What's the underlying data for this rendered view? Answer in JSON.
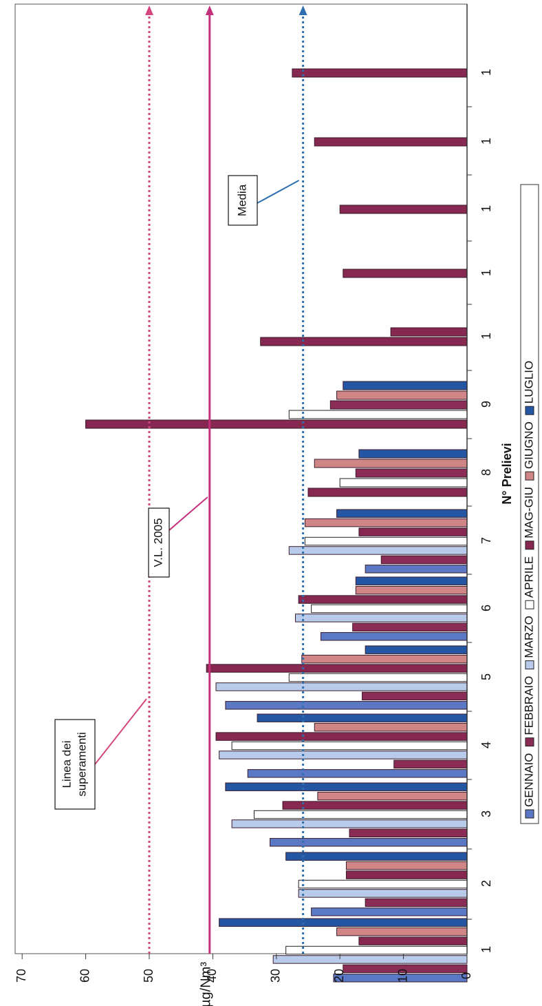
{
  "chart_data": {
    "type": "bar",
    "orientation": "horizontal",
    "xlabel": "N° Prelievi",
    "ylabel": "µg/Nm³",
    "ylim": [
      0,
      70
    ],
    "yticks": [
      "0",
      "10",
      "20",
      "30",
      "40",
      "50",
      "60",
      "70"
    ],
    "grid": false,
    "legend_position": "bottom",
    "groups": [
      {
        "label": "1",
        "bars": [
          [
            "GENNAIO",
            21
          ],
          [
            "FEBBRAIO",
            19.5
          ],
          [
            "MARZO",
            30.5
          ],
          [
            "APRILE",
            28.5
          ],
          [
            "MAG-GIU",
            17
          ],
          [
            "GIUGNO",
            20.5
          ],
          [
            "LUGLIO",
            39
          ]
        ]
      },
      {
        "label": "2",
        "bars": [
          [
            "GENNAIO",
            24.5
          ],
          [
            "FEBBRAIO",
            16
          ],
          [
            "MARZO",
            26.5
          ],
          [
            "APRILE",
            26.5
          ],
          [
            "MAG-GIU",
            19
          ],
          [
            "GIUGNO",
            19
          ],
          [
            "LUGLIO",
            28.5
          ]
        ]
      },
      {
        "label": "3",
        "bars": [
          [
            "GENNAIO",
            31
          ],
          [
            "FEBBRAIO",
            18.5
          ],
          [
            "MARZO",
            37
          ],
          [
            "APRILE",
            33.5
          ],
          [
            "MAG-GIU",
            29
          ],
          [
            "GIUGNO",
            23.5
          ],
          [
            "LUGLIO",
            38
          ]
        ]
      },
      {
        "label": "4",
        "bars": [
          [
            "GENNAIO",
            34.5
          ],
          [
            "FEBBRAIO",
            11.5
          ],
          [
            "MARZO",
            39
          ],
          [
            "APRILE",
            37
          ],
          [
            "MAG-GIU",
            39.5
          ],
          [
            "GIUGNO",
            24
          ],
          [
            "LUGLIO",
            33
          ]
        ]
      },
      {
        "label": "5",
        "bars": [
          [
            "GENNAIO",
            38
          ],
          [
            "FEBBRAIO",
            16.5
          ],
          [
            "MARZO",
            39.5
          ],
          [
            "APRILE",
            28
          ],
          [
            "MAG-GIU",
            41
          ],
          [
            "GIUGNO",
            26
          ],
          [
            "LUGLIO",
            16
          ]
        ]
      },
      {
        "label": "6",
        "bars": [
          [
            "GENNAIO",
            23
          ],
          [
            "FEBBRAIO",
            18
          ],
          [
            "MARZO",
            27
          ],
          [
            "APRILE",
            24.5
          ],
          [
            "MAG-GIU",
            26.5
          ],
          [
            "GIUGNO",
            17.5
          ],
          [
            "LUGLIO",
            17.5
          ]
        ]
      },
      {
        "label": "7",
        "bars": [
          [
            "GENNAIO",
            16
          ],
          [
            "FEBBRAIO",
            13.5
          ],
          [
            "MARZO",
            28
          ],
          [
            "APRILE",
            25.5
          ],
          [
            "MAG-GIU",
            17
          ],
          [
            "GIUGNO",
            25.5
          ],
          [
            "LUGLIO",
            20.5
          ]
        ]
      },
      {
        "label": "8",
        "bars": [
          [
            "MAG-GIU",
            25
          ],
          [
            "APRILE",
            20
          ],
          [
            "FEBBRAIO",
            17.5
          ],
          [
            "GIUGNO",
            24
          ],
          [
            "LUGLIO",
            17
          ]
        ]
      },
      {
        "label": "9",
        "bars": [
          [
            "MAG-GIU",
            60
          ],
          [
            "APRILE",
            28
          ],
          [
            "FEBBRAIO",
            21.5
          ],
          [
            "GIUGNO",
            20.5
          ],
          [
            "LUGLIO",
            19.5
          ]
        ]
      },
      {
        "label": "1",
        "bars": [
          [
            "MAG-GIU",
            32.5
          ],
          [
            "MAG-GIU",
            12
          ]
        ]
      },
      {
        "label": "1",
        "bars": [
          [
            "MAG-GIU",
            19.5
          ]
        ]
      },
      {
        "label": "1",
        "bars": [
          [
            "MAG-GIU",
            20
          ]
        ]
      },
      {
        "label": "1",
        "bars": [
          [
            "MAG-GIU",
            24
          ]
        ]
      },
      {
        "label": "1",
        "bars": [
          [
            "MAG-GIU",
            27.5
          ]
        ]
      }
    ],
    "series": [
      {
        "name": "GENNAIO",
        "color": "#5b78c4"
      },
      {
        "name": "FEBBRAIO",
        "color": "#8b2c56"
      },
      {
        "name": "MARZO",
        "color": "#b9cbea"
      },
      {
        "name": "APRILE",
        "color": "#ffffff"
      },
      {
        "name": "MAG-GIU",
        "color": "#86284f"
      },
      {
        "name": "GIUGNO",
        "color": "#d08587"
      },
      {
        "name": "LUGLIO",
        "color": "#2456a4"
      }
    ],
    "reference_lines": [
      {
        "value": 50,
        "label": "Linea dei superamenti",
        "label_lines": [
          "Linea dei",
          "superamenti"
        ],
        "style": "dotted",
        "color": "#d4467e"
      },
      {
        "value": 40.5,
        "label": "V.L. 2005",
        "label_lines": [
          "V.L. 2005"
        ],
        "style": "solid",
        "color": "#c5307a"
      },
      {
        "value": 25.8,
        "label": "Media",
        "label_lines": [
          "Media"
        ],
        "style": "dotted",
        "color": "#2e6fb0"
      }
    ]
  }
}
